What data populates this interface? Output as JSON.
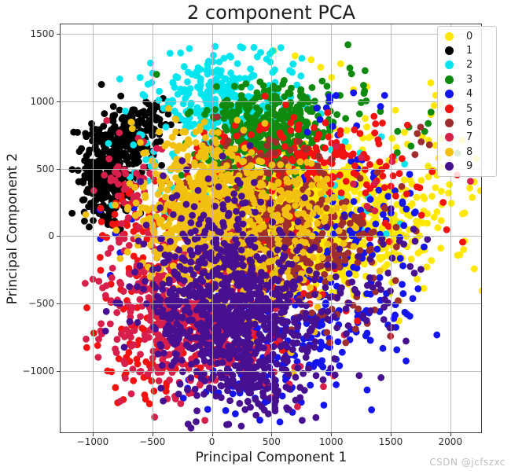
{
  "title": "2 component PCA",
  "watermark": "CSDN @jcfszxc",
  "colors": {
    "background": "#ffffff",
    "spine": "#3c3c3c",
    "grid": "#b5b5b5",
    "text": "#1c1c1c",
    "tick_text": "#2b2b2b",
    "legend_border": "#c9c9c9",
    "watermark": "#bfbfbf"
  },
  "chart_data": {
    "type": "scatter",
    "title": "2 component PCA",
    "xlabel": "Principal Component 1",
    "ylabel": "Principal Component 2",
    "xlim": [
      -1270,
      2265
    ],
    "ylim": [
      -1460,
      1570
    ],
    "xticks": [
      -1000,
      -500,
      0,
      500,
      1000,
      1500,
      2000
    ],
    "yticks": [
      -1000,
      -500,
      0,
      500,
      1000,
      1500
    ],
    "grid": true,
    "grid_color": "#b5b5b5",
    "legend_position": "upper right",
    "marker_diameter_px": 8.8,
    "series": [
      {
        "label": "0",
        "color": "#FFE800",
        "clusters": [
          [
            900,
            100,
            420,
            260,
            800
          ],
          [
            400,
            250,
            250,
            200,
            200
          ],
          [
            1600,
            400,
            350,
            300,
            70
          ],
          [
            2100,
            100,
            150,
            300,
            12
          ],
          [
            900,
            1330,
            250,
            100,
            6
          ]
        ]
      },
      {
        "label": "1",
        "color": "#000000",
        "clusters": [
          [
            -900,
            430,
            110,
            170,
            280
          ],
          [
            -720,
            720,
            140,
            150,
            170
          ],
          [
            -500,
            900,
            100,
            80,
            25
          ]
        ]
      },
      {
        "label": "2",
        "color": "#00E5EE",
        "clusters": [
          [
            60,
            1000,
            290,
            180,
            320
          ],
          [
            -450,
            420,
            180,
            250,
            35
          ],
          [
            1100,
            500,
            300,
            250,
            25
          ],
          [
            500,
            1300,
            200,
            80,
            8
          ]
        ]
      },
      {
        "label": "3",
        "color": "#0E8A0E",
        "clusters": [
          [
            470,
            780,
            260,
            170,
            360
          ],
          [
            1050,
            1000,
            220,
            160,
            20
          ],
          [
            1700,
            750,
            250,
            200,
            8
          ],
          [
            150,
            500,
            200,
            150,
            60
          ]
        ]
      },
      {
        "label": "4",
        "color": "#1414F0",
        "clusters": [
          [
            1250,
            150,
            280,
            280,
            80
          ],
          [
            700,
            -700,
            350,
            280,
            170
          ],
          [
            280,
            -1080,
            260,
            140,
            50
          ],
          [
            1050,
            950,
            180,
            130,
            10
          ],
          [
            -900,
            0,
            150,
            250,
            8
          ],
          [
            1500,
            -550,
            250,
            250,
            25
          ]
        ]
      },
      {
        "label": "5",
        "color": "#F31111",
        "clusters": [
          [
            700,
            600,
            320,
            180,
            140
          ],
          [
            -500,
            50,
            220,
            280,
            90
          ],
          [
            -300,
            -750,
            320,
            230,
            130
          ],
          [
            250,
            -250,
            380,
            300,
            130
          ],
          [
            1400,
            350,
            280,
            220,
            40
          ]
        ]
      },
      {
        "label": "6",
        "color": "#9E2E2E",
        "clusters": [
          [
            450,
            30,
            320,
            230,
            380
          ],
          [
            1150,
            -50,
            250,
            200,
            60
          ],
          [
            350,
            550,
            280,
            140,
            50
          ],
          [
            1050,
            -600,
            220,
            150,
            15
          ],
          [
            1850,
            800,
            150,
            100,
            5
          ]
        ]
      },
      {
        "label": "7",
        "color": "#D81E4B",
        "clusters": [
          [
            -380,
            -550,
            240,
            260,
            330
          ],
          [
            -700,
            420,
            130,
            170,
            45
          ],
          [
            150,
            -850,
            300,
            200,
            90
          ],
          [
            1300,
            300,
            200,
            200,
            8
          ]
        ]
      },
      {
        "label": "8",
        "color": "#F2C110",
        "clusters": [
          [
            -60,
            130,
            290,
            230,
            600
          ],
          [
            450,
            -300,
            280,
            200,
            120
          ],
          [
            -150,
            620,
            200,
            140,
            70
          ],
          [
            700,
            250,
            250,
            180,
            80
          ]
        ]
      },
      {
        "label": "9",
        "color": "#471090",
        "clusters": [
          [
            150,
            -550,
            330,
            280,
            750
          ],
          [
            380,
            -1050,
            300,
            170,
            130
          ],
          [
            1250,
            -450,
            280,
            220,
            45
          ],
          [
            50,
            80,
            280,
            200,
            80
          ],
          [
            1600,
            -150,
            200,
            200,
            10
          ]
        ]
      }
    ]
  }
}
